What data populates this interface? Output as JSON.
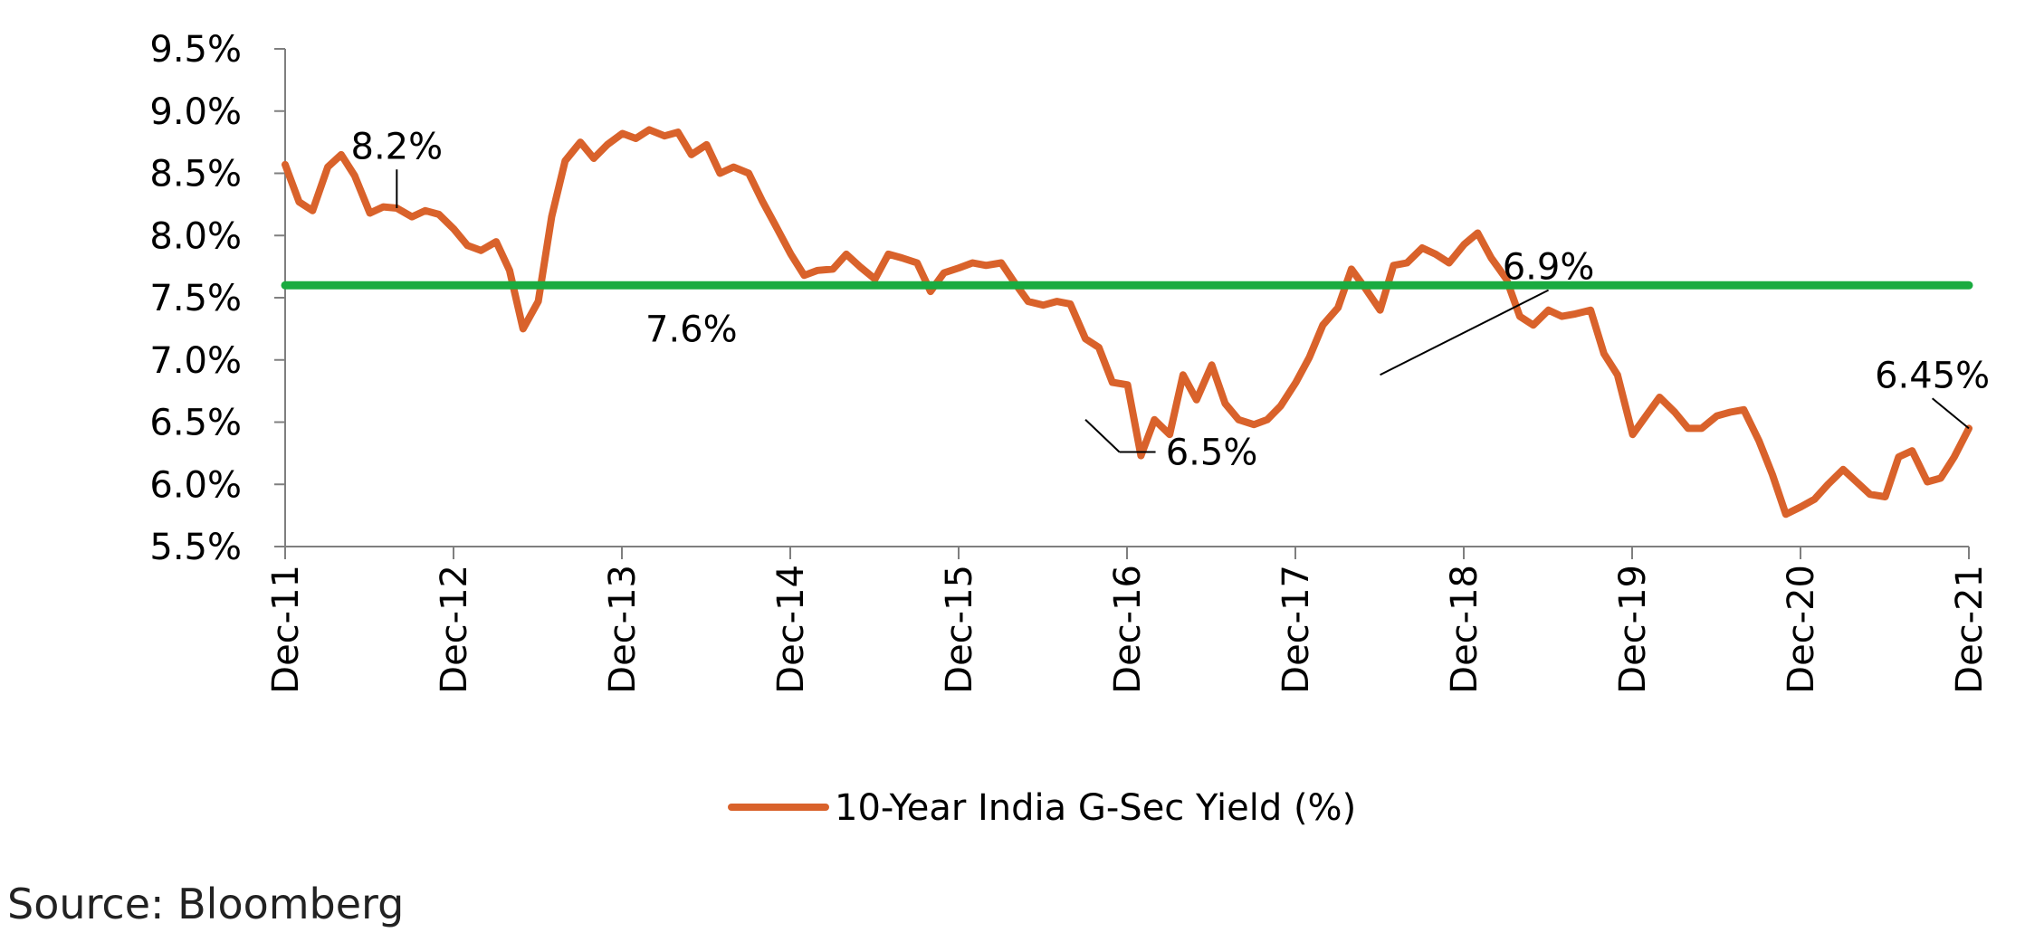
{
  "chart_data": {
    "type": "line",
    "title": "",
    "xlabel": "",
    "ylabel": "",
    "ylim": [
      5.5,
      9.5
    ],
    "yticks": [
      "9.5%",
      "9.0%",
      "8.5%",
      "8.0%",
      "7.5%",
      "7.0%",
      "6.5%",
      "6.0%",
      "5.5%"
    ],
    "ytick_values": [
      9.5,
      9.0,
      8.5,
      8.0,
      7.5,
      7.0,
      6.5,
      6.0,
      5.5
    ],
    "xticks": [
      "Dec-11",
      "Dec-12",
      "Dec-13",
      "Dec-14",
      "Dec-15",
      "Dec-16",
      "Dec-17",
      "Dec-18",
      "Dec-19",
      "Dec-20",
      "Dec-21"
    ],
    "xlim": [
      2011.917,
      2021.917
    ],
    "grid": false,
    "legend_position": "bottom-center",
    "series": [
      {
        "name": "10-Year India G-Sec Yield (%)",
        "color": "#d9622b",
        "x": [
          2011.917,
          2012.0,
          2012.08,
          2012.17,
          2012.25,
          2012.33,
          2012.42,
          2012.5,
          2012.58,
          2012.67,
          2012.75,
          2012.83,
          2012.92,
          2013.0,
          2013.08,
          2013.17,
          2013.25,
          2013.33,
          2013.42,
          2013.5,
          2013.58,
          2013.67,
          2013.75,
          2013.83,
          2013.92,
          2014.0,
          2014.08,
          2014.17,
          2014.25,
          2014.33,
          2014.42,
          2014.5,
          2014.58,
          2014.67,
          2014.75,
          2014.83,
          2014.92,
          2015.0,
          2015.08,
          2015.17,
          2015.25,
          2015.33,
          2015.42,
          2015.5,
          2015.58,
          2015.67,
          2015.75,
          2015.83,
          2015.92,
          2016.0,
          2016.08,
          2016.17,
          2016.25,
          2016.33,
          2016.42,
          2016.5,
          2016.58,
          2016.67,
          2016.75,
          2016.83,
          2016.92,
          2017.0,
          2017.08,
          2017.17,
          2017.25,
          2017.33,
          2017.42,
          2017.5,
          2017.58,
          2017.67,
          2017.75,
          2017.83,
          2017.92,
          2018.0,
          2018.08,
          2018.17,
          2018.25,
          2018.33,
          2018.42,
          2018.5,
          2018.58,
          2018.67,
          2018.75,
          2018.83,
          2018.92,
          2019.0,
          2019.08,
          2019.17,
          2019.25,
          2019.33,
          2019.42,
          2019.5,
          2019.58,
          2019.67,
          2019.75,
          2019.83,
          2019.92,
          2020.0,
          2020.08,
          2020.17,
          2020.25,
          2020.33,
          2020.42,
          2020.5,
          2020.58,
          2020.67,
          2020.75,
          2020.83,
          2020.92,
          2021.0,
          2021.08,
          2021.17,
          2021.25,
          2021.33,
          2021.42,
          2021.5,
          2021.58,
          2021.67,
          2021.75,
          2021.83,
          2021.917
        ],
        "values": [
          8.57,
          8.27,
          8.2,
          8.55,
          8.65,
          8.48,
          8.18,
          8.23,
          8.22,
          8.15,
          8.2,
          8.17,
          8.05,
          7.92,
          7.88,
          7.95,
          7.72,
          7.25,
          7.47,
          8.15,
          8.6,
          8.75,
          8.62,
          8.73,
          8.82,
          8.78,
          8.85,
          8.8,
          8.83,
          8.65,
          8.73,
          8.5,
          8.55,
          8.5,
          8.28,
          8.08,
          7.85,
          7.68,
          7.72,
          7.73,
          7.85,
          7.75,
          7.65,
          7.85,
          7.82,
          7.78,
          7.55,
          7.7,
          7.74,
          7.78,
          7.76,
          7.78,
          7.62,
          7.47,
          7.44,
          7.47,
          7.45,
          7.17,
          7.1,
          6.82,
          6.8,
          6.23,
          6.52,
          6.4,
          6.88,
          6.68,
          6.96,
          6.65,
          6.52,
          6.48,
          6.52,
          6.63,
          6.82,
          7.02,
          7.28,
          7.42,
          7.73,
          7.58,
          7.4,
          7.76,
          7.78,
          7.9,
          7.85,
          7.78,
          7.93,
          8.02,
          7.82,
          7.65,
          7.35,
          7.28,
          7.4,
          7.35,
          7.37,
          7.4,
          7.05,
          6.88,
          6.4,
          6.55,
          6.7,
          6.58,
          6.45,
          6.45,
          6.55,
          6.58,
          6.6,
          6.35,
          6.08,
          5.76,
          5.82,
          5.88,
          6.0,
          6.12,
          6.02,
          5.92,
          5.9,
          6.22,
          6.27,
          6.02,
          6.05,
          6.22,
          6.45
        ]
      },
      {
        "name": "",
        "color": "#1aab40",
        "x": [
          2011.917,
          2021.917
        ],
        "values": [
          7.6,
          7.6
        ]
      }
    ],
    "annotations": [
      {
        "text": "8.2%",
        "at_x": 2012.58,
        "at_y": 8.22,
        "text_x": 2012.58,
        "text_y": 8.72,
        "leader": true
      },
      {
        "text": "7.6%",
        "at_x": 2014.33,
        "at_y": 7.25,
        "text_x": 2014.33,
        "text_y": 7.25,
        "leader": false
      },
      {
        "text": "6.5%",
        "at_x": 2016.67,
        "at_y": 6.52,
        "text_x": 2017.42,
        "text_y": 6.26,
        "leader": true
      },
      {
        "text": "6.9%",
        "at_x": 2018.42,
        "at_y": 6.88,
        "text_x": 2019.42,
        "text_y": 7.75,
        "leader": true
      },
      {
        "text": "6.45%",
        "at_x": 2021.917,
        "at_y": 6.45,
        "text_x": 2021.7,
        "text_y": 6.88,
        "leader": true
      }
    ]
  },
  "source": "Source: Bloomberg"
}
